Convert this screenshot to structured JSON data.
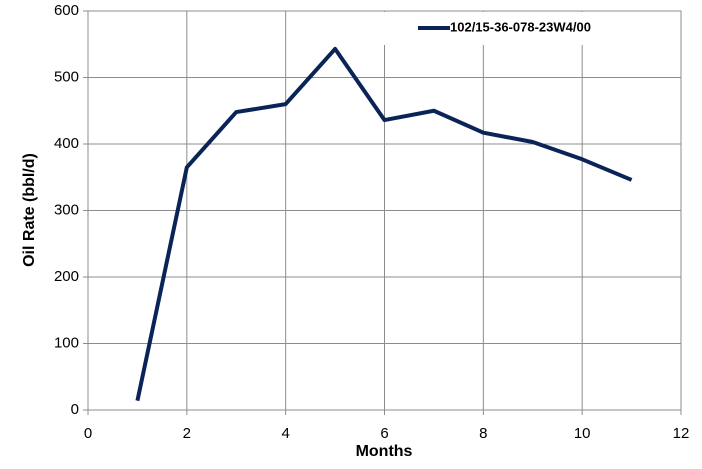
{
  "chart_data": {
    "type": "line",
    "x": [
      1,
      2,
      3,
      4,
      5,
      6,
      7,
      8,
      9,
      10,
      11
    ],
    "series": [
      {
        "name": "102/15-36-078-23W4/00",
        "color": "#0a2458",
        "values": [
          14,
          365,
          448,
          460,
          543,
          436,
          450,
          417,
          403,
          377,
          346
        ]
      }
    ],
    "xlabel": "Months",
    "ylabel": "Oil Rate (bbl/d)",
    "xlim": [
      0,
      12
    ],
    "xticks": [
      0,
      2,
      4,
      6,
      8,
      10,
      12
    ],
    "ylim": [
      0,
      600
    ],
    "yticks": [
      0,
      100,
      200,
      300,
      400,
      500,
      600
    ],
    "grid": true,
    "legend": "top-right"
  }
}
